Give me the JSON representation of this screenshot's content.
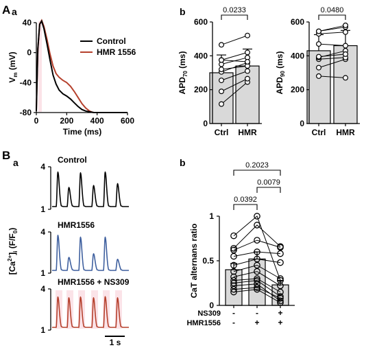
{
  "panel_labels": {
    "A": "A",
    "A_a": "a",
    "A_b": "b",
    "B": "B",
    "B_a": "a",
    "B_b": "b"
  },
  "colors": {
    "control": "#000000",
    "hmr": "#b5402c",
    "hmr_trace": "#3e5f9e",
    "highlight": "#fbe3e8",
    "bar": "#d9d9d9"
  },
  "chart_data": [
    {
      "id": "action_potential",
      "type": "line",
      "xlabel": "Time (ms)",
      "ylabel": "Vm (mV)",
      "ylabel_main": "V",
      "ylabel_sub": "m",
      "ylabel_unit": " (mV)",
      "xlim": [
        0,
        600
      ],
      "ylim": [
        -80,
        40
      ],
      "xticks": [
        0,
        200,
        400,
        600
      ],
      "yticks": [
        40,
        0,
        -40,
        -80
      ],
      "series": [
        {
          "name": "Control",
          "color": "#000000",
          "x": [
            0,
            10,
            22,
            35,
            50,
            70,
            90,
            110,
            130,
            150,
            175,
            200,
            225,
            250,
            275,
            300,
            325,
            350,
            380,
            410,
            450,
            500,
            600
          ],
          "y": [
            -78,
            5,
            38,
            42,
            32,
            12,
            -10,
            -30,
            -42,
            -50,
            -55,
            -58,
            -62,
            -67,
            -72,
            -76,
            -78,
            -79,
            -80,
            -80,
            -80,
            -80,
            -80
          ]
        },
        {
          "name": "HMR 1556",
          "color": "#b5402c",
          "x": [
            0,
            10,
            22,
            35,
            50,
            70,
            90,
            110,
            130,
            150,
            175,
            200,
            225,
            250,
            275,
            300,
            325,
            350,
            375,
            400,
            430,
            470,
            600
          ],
          "y": [
            -78,
            5,
            38,
            43,
            35,
            18,
            -2,
            -18,
            -28,
            -33,
            -37,
            -40,
            -45,
            -52,
            -60,
            -68,
            -74,
            -78,
            -80,
            -80,
            -80,
            -80,
            -80
          ]
        }
      ]
    },
    {
      "id": "apd70",
      "type": "bar",
      "ylabel": "APD70 (ms)",
      "ylabel_main": "APD",
      "ylabel_sub": "70",
      "ylabel_unit": " (ms)",
      "categories": [
        "Ctrl",
        "HMR"
      ],
      "values": [
        300,
        340
      ],
      "errors": [
        105,
        100
      ],
      "ylim": [
        0,
        600
      ],
      "yticks": [
        0,
        200,
        400,
        600
      ],
      "paired": [
        [
          115,
          245
        ],
        [
          190,
          265
        ],
        [
          255,
          310
        ],
        [
          305,
          360
        ],
        [
          320,
          340
        ],
        [
          350,
          390
        ],
        [
          375,
          420
        ],
        [
          375,
          365
        ],
        [
          465,
          520
        ]
      ],
      "annotation": "0.0233"
    },
    {
      "id": "apd90",
      "type": "bar",
      "ylabel": "APD90 (ms)",
      "ylabel_main": "APD",
      "ylabel_sub": "90",
      "ylabel_unit": " (ms)",
      "categories": [
        "Ctrl",
        "HMR"
      ],
      "values": [
        430,
        460
      ],
      "errors": [
        95,
        90
      ],
      "ylim": [
        0,
        600
      ],
      "yticks": [
        0,
        200,
        400,
        600
      ],
      "paired": [
        [
          280,
          270
        ],
        [
          330,
          380
        ],
        [
          380,
          390
        ],
        [
          390,
          430
        ],
        [
          395,
          410
        ],
        [
          470,
          460
        ],
        [
          530,
          540
        ],
        [
          545,
          570
        ],
        [
          545,
          580
        ]
      ],
      "annotation": "0.0480"
    },
    {
      "id": "calcium_traces",
      "type": "line",
      "ylabel": "[Ca2+]i (F/F0)",
      "ylabel_parts": [
        "[Ca",
        "2+",
        "]",
        "i",
        " (F/F",
        "0",
        ")"
      ],
      "scalebar": "1 s",
      "panels": [
        {
          "title": "Control",
          "yticks": [
            4,
            1
          ],
          "color": "#000000",
          "peaks": [
            0.9,
            0.5,
            0.88,
            0.55,
            0.9,
            0.6
          ],
          "highlight": false
        },
        {
          "title": "HMR1556",
          "yticks": [
            4,
            1
          ],
          "color": "#3e5f9e",
          "peaks": [
            0.95,
            0.35,
            0.9,
            0.45,
            0.9,
            0.3
          ],
          "highlight": false
        },
        {
          "title": "HMR1556 + NS309",
          "yticks": [
            4,
            1
          ],
          "color": "#b5402c",
          "peaks": [
            0.82,
            0.8,
            0.82,
            0.8,
            0.83,
            0.8
          ],
          "highlight": true
        }
      ]
    },
    {
      "id": "cat_alternans",
      "type": "bar",
      "ylabel": "CaT alternans ratio",
      "ylim": [
        0,
        1
      ],
      "yticks": [
        0,
        0.5,
        1
      ],
      "values": [
        0.4,
        0.52,
        0.23
      ],
      "errors": [
        0.07,
        0.08,
        0.05
      ],
      "row_labels": [
        "NS309",
        "HMR1556"
      ],
      "conditions": [
        {
          "NS309": "-",
          "HMR1556": "-"
        },
        {
          "NS309": "-",
          "HMR1556": "+"
        },
        {
          "NS309": "+",
          "HMR1556": "+"
        }
      ],
      "paired": [
        [
          0.78,
          1.0,
          0.28
        ],
        [
          0.64,
          0.9,
          0.66
        ],
        [
          0.62,
          0.73,
          0.65
        ],
        [
          0.55,
          0.6,
          0.58
        ],
        [
          0.45,
          0.52,
          0.48
        ],
        [
          0.38,
          0.45,
          0.3
        ],
        [
          0.32,
          0.38,
          0.22
        ],
        [
          0.28,
          0.3,
          0.15
        ],
        [
          0.25,
          0.28,
          0.1
        ],
        [
          0.22,
          0.24,
          0.05
        ],
        [
          0.18,
          0.2,
          0.08
        ],
        [
          0.15,
          0.18,
          0.03
        ]
      ],
      "brackets": [
        {
          "from": 0,
          "to": 2,
          "label": "0.2023"
        },
        {
          "from": 1,
          "to": 2,
          "label": "0.0079"
        },
        {
          "from": 0,
          "to": 1,
          "label": "0.0392"
        }
      ]
    }
  ]
}
